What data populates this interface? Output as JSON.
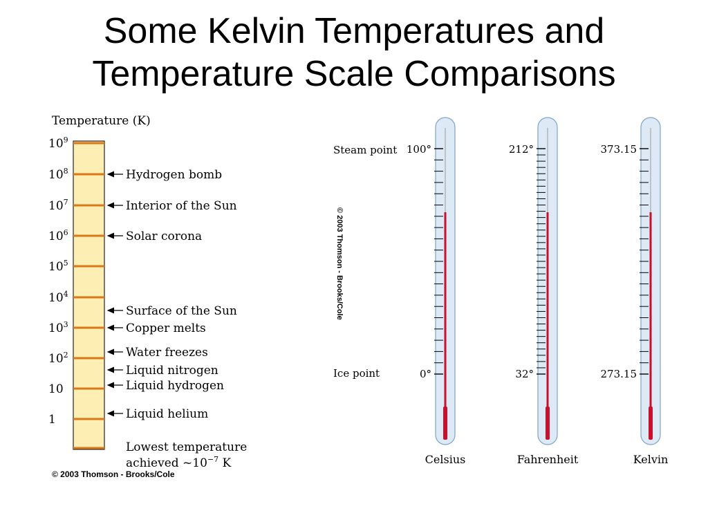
{
  "title": {
    "line1": "Some Kelvin Temperatures and",
    "line2": "Temperature Scale Comparisons"
  },
  "colors": {
    "column_fill": "#fdeeb3",
    "column_tick": "#d9771a",
    "mercury": "#c8102e",
    "tube_fill": "#dde9f4",
    "tube_stroke": "#7fa3c9"
  },
  "left": {
    "axis_title": "Temperature (K)",
    "ticks": [
      {
        "base": "10",
        "exp": "9"
      },
      {
        "base": "10",
        "exp": "8"
      },
      {
        "base": "10",
        "exp": "7"
      },
      {
        "base": "10",
        "exp": "6"
      },
      {
        "base": "10",
        "exp": "5"
      },
      {
        "base": "10",
        "exp": "4"
      },
      {
        "base": "10",
        "exp": "3"
      },
      {
        "base": "10",
        "exp": "2"
      },
      {
        "base": "10",
        "exp": ""
      },
      {
        "base": "1",
        "exp": ""
      }
    ],
    "markers": [
      {
        "label": "Hydrogen bomb"
      },
      {
        "label": "Interior of the Sun"
      },
      {
        "label": "Solar corona"
      },
      {
        "label": "Surface of the Sun"
      },
      {
        "label": "Copper melts"
      },
      {
        "label": "Water freezes"
      },
      {
        "label": "Liquid nitrogen"
      },
      {
        "label": "Liquid hydrogen"
      },
      {
        "label": "Liquid helium"
      }
    ],
    "bottom_note_line1": "Lowest temperature",
    "bottom_note_line2_prefix": "achieved ~10",
    "bottom_note_exp": "−7",
    "bottom_note_suffix": " K",
    "copyright": "© 2003 Thomson - Brooks/Cole"
  },
  "right": {
    "steam_label": "Steam point",
    "ice_label": "Ice point",
    "rotated_copyright": "© 2003 Thomson - Brooks/Cole",
    "thermometers": [
      {
        "name": "Celsius",
        "steam": "100°",
        "ice": "0°",
        "minor_divisions": 20
      },
      {
        "name": "Fahrenheit",
        "steam": "212°",
        "ice": "32°",
        "minor_divisions": 36
      },
      {
        "name": "Kelvin",
        "steam": "373.15",
        "ice": "273.15",
        "minor_divisions": 20
      }
    ]
  }
}
